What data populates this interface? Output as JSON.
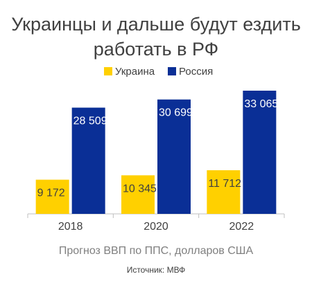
{
  "chart_data": {
    "type": "bar",
    "title_lines": [
      "Украинцы и дальше будут ездить",
      "работать в РФ"
    ],
    "categories": [
      "2018",
      "2020",
      "2022"
    ],
    "series": [
      {
        "name": "Украина",
        "color": "#FFD000",
        "label_color": "#404040",
        "values": [
          9172,
          10345,
          11712
        ],
        "labels": [
          "9 172",
          "10 345",
          "11 712"
        ]
      },
      {
        "name": "Россия",
        "color": "#0A2F96",
        "label_color": "#FFFFFF",
        "values": [
          28509,
          30699,
          33065
        ],
        "labels": [
          "28 509",
          "30 699",
          "33 065"
        ]
      }
    ],
    "ylim": [
      0,
      35000
    ],
    "legend_position": "top-center",
    "grid": false,
    "caption": "Прогноз ВВП по ППС, долларов США",
    "source": "Источник: МВФ"
  }
}
